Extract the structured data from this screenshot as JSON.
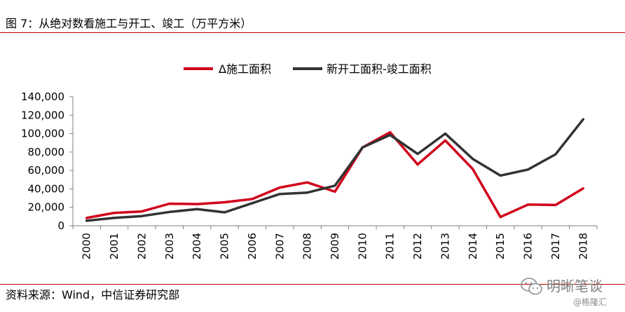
{
  "header": {
    "title": "图 7：从绝对数看施工与开工、竣工（万平方米）"
  },
  "footer": {
    "source": "资料来源：Wind，中信证券研究部"
  },
  "watermark": {
    "main": "明晰笔谈",
    "sub": "@格隆汇"
  },
  "colors": {
    "rule": "#c00000",
    "series_red": "#d0021b",
    "series_dark": "#333333",
    "axis": "#7f7f7f"
  },
  "chart_data": {
    "type": "line",
    "x": [
      "2000",
      "2001",
      "2002",
      "2003",
      "2004",
      "2005",
      "2006",
      "2007",
      "2008",
      "2009",
      "2010",
      "2011",
      "2012",
      "2013",
      "2014",
      "2015",
      "2016",
      "2017",
      "2018"
    ],
    "series": [
      {
        "name": "Δ施工面积",
        "color": "#d0021b",
        "values": [
          8500,
          14000,
          15500,
          24000,
          23500,
          25500,
          29000,
          41500,
          47000,
          37000,
          85000,
          101500,
          66500,
          92500,
          61500,
          9500,
          23000,
          22500,
          40500
        ]
      },
      {
        "name": "新开工面积-竣工面积",
        "color": "#333333",
        "values": [
          5500,
          8500,
          10500,
          15000,
          18000,
          14500,
          24500,
          34500,
          36000,
          43500,
          85000,
          98500,
          78000,
          100000,
          72500,
          54500,
          61000,
          77500,
          115500
        ]
      }
    ],
    "ylim": [
      0,
      140000
    ],
    "yticks": [
      0,
      20000,
      40000,
      60000,
      80000,
      100000,
      120000,
      140000
    ],
    "ytick_labels": [
      "0",
      "20,000",
      "40,000",
      "60,000",
      "80,000",
      "100,000",
      "120,000",
      "140,000"
    ],
    "xlabel": "",
    "ylabel": "",
    "grid": false,
    "legend_position": "top-center"
  }
}
